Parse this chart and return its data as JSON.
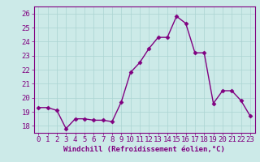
{
  "x": [
    0,
    1,
    2,
    3,
    4,
    5,
    6,
    7,
    8,
    9,
    10,
    11,
    12,
    13,
    14,
    15,
    16,
    17,
    18,
    19,
    20,
    21,
    22,
    23
  ],
  "y": [
    19.3,
    19.3,
    19.1,
    17.8,
    18.5,
    18.5,
    18.4,
    18.4,
    18.3,
    19.7,
    21.8,
    22.5,
    23.5,
    24.3,
    24.3,
    25.8,
    25.3,
    23.2,
    23.2,
    19.6,
    20.5,
    20.5,
    19.8,
    18.7
  ],
  "line_color": "#800080",
  "marker": "D",
  "markersize": 2.5,
  "linewidth": 1.0,
  "xlabel": "Windchill (Refroidissement éolien,°C)",
  "xlabel_fontsize": 6.5,
  "xticks": [
    0,
    1,
    2,
    3,
    4,
    5,
    6,
    7,
    8,
    9,
    10,
    11,
    12,
    13,
    14,
    15,
    16,
    17,
    18,
    19,
    20,
    21,
    22,
    23
  ],
  "yticks": [
    18,
    19,
    20,
    21,
    22,
    23,
    24,
    25,
    26
  ],
  "ylim": [
    17.5,
    26.5
  ],
  "xlim": [
    -0.5,
    23.5
  ],
  "tick_fontsize": 6.5,
  "background_color": "#cceae8",
  "grid_color": "#aad4d2",
  "line_marker_color": "#800080"
}
